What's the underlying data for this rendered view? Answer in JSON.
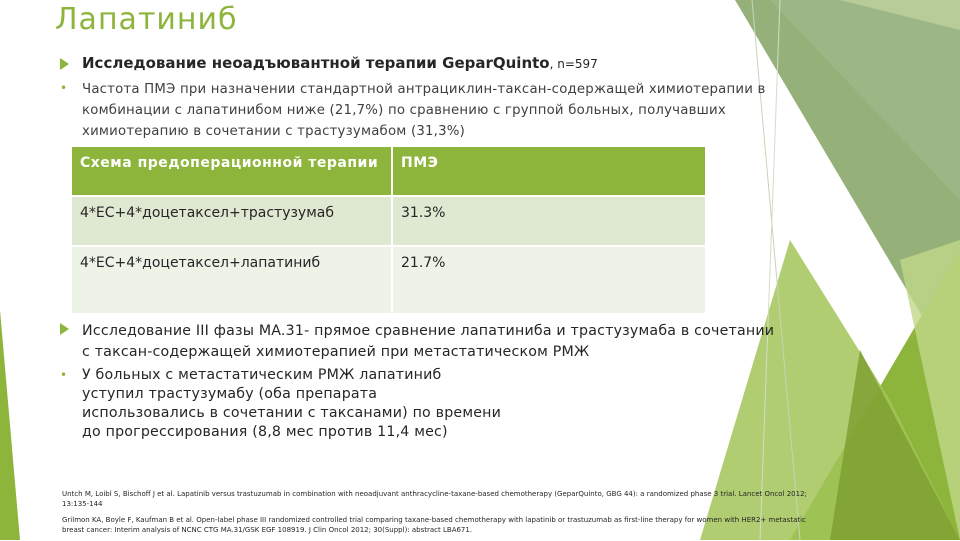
{
  "title": "Лапатиниб",
  "bullets": [
    {
      "text": "Исследование неоадъювантной терапии GeparQuinto",
      "note": ", n=597"
    },
    {
      "text": "Частота ПМЭ при назначении стандартной антрациклин-таксан-содержащей химиотерапии в комбинации с лапатинибом ниже (21,7%) по сравнению с группой больных, получавших химиотерапию в сочетании с трастузумабом (31,3%)"
    },
    {
      "text": "Исследование III фазы MA.31- прямое сравнение лапатиниба и трастузумаба в сочетании с таксан-содержащей химиотерапией при метастатическом РМЖ"
    },
    {
      "text": "У больных с метастатическим РМЖ лапатиниб уступил трастузумабу (оба препарата использовались в сочетании с таксанами) по времени до прогрессирования (8,8 мес против 11,4 мес)"
    }
  ],
  "table": {
    "header": [
      "Схема предоперационной терапии",
      "ПМЭ"
    ],
    "rows": [
      [
        "4*ЕС+4*доцетаксел+трастузумаб",
        "31.3%"
      ],
      [
        "4*ЕС+4*доцетаксел+лапатиниб",
        "21.7%"
      ]
    ]
  },
  "references": [
    "Untch M, Loibl S, Bischoff J et al. Lapatinib versus trastuzumab in combination with neoadjuvant anthracycline-taxane-based chemotherapy (GeparQuinto, GBG 44): a randomized phase 3 trial. Lancet Oncol 2012; 13:135-144",
    "Grilmon KA, Boyle F, Kaufman B et al. Open-label phase III randomized controlled trial comparing taxane-based chemotherapy with lapatinib or trastuzumab as first-line therapy for women with HER2+ metastatic breast cancer: Interim analysis of NCNC CTG MA.31/GSK EGF 108919. J Clin Oncol 2012; 30(Suppl): abstract LBA671."
  ]
}
